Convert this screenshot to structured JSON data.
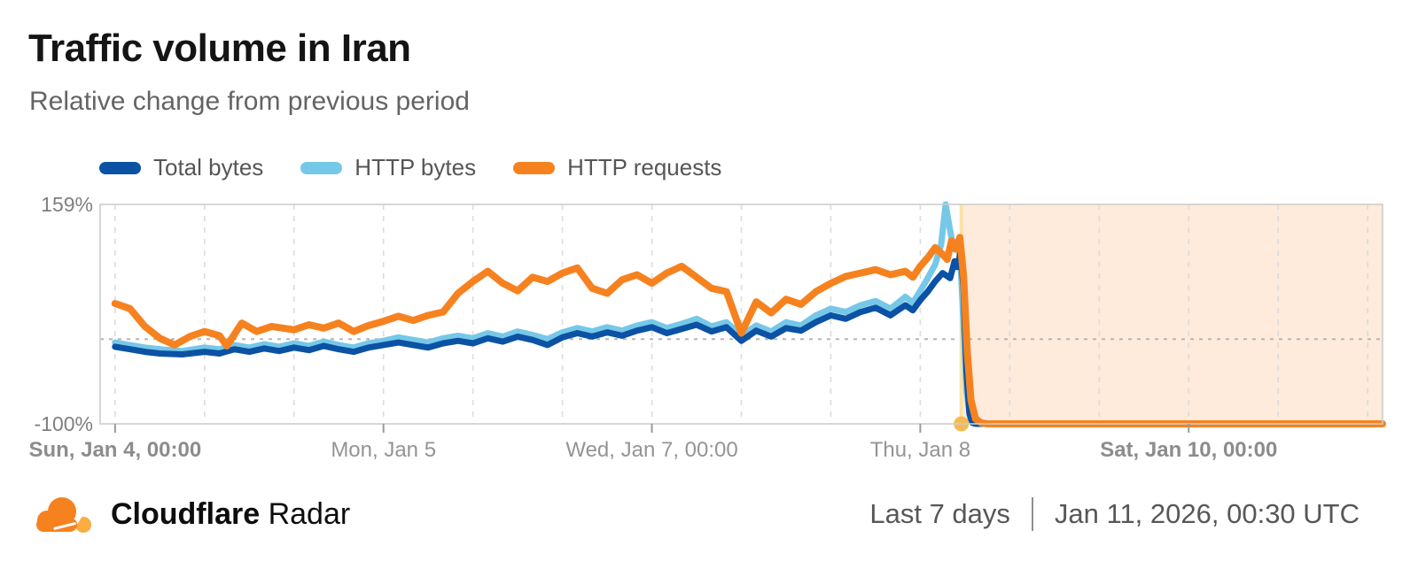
{
  "header": {
    "title": "Traffic volume in Iran",
    "subtitle": "Relative change from previous period"
  },
  "legend": {
    "items": [
      {
        "label": "Total bytes",
        "color": "#0b52a5"
      },
      {
        "label": "HTTP bytes",
        "color": "#76c8e8"
      },
      {
        "label": "HTTP requests",
        "color": "#f6821f"
      }
    ]
  },
  "chart_data": {
    "type": "line",
    "title": "Traffic volume in Iran",
    "subtitle": "Relative change from previous period",
    "unit": "percent relative change from previous period",
    "ylim": [
      -100,
      159
    ],
    "y_tick_labels": {
      "top": "159%",
      "bottom": "-100%"
    },
    "x_domain_hours": [
      -2,
      170
    ],
    "grid_interval_hours": 12,
    "zero_line": true,
    "legend_position": "top-left",
    "x_ticks": [
      {
        "hour": 0,
        "label": "Sun, Jan 4, 00:00",
        "bold": true
      },
      {
        "hour": 36,
        "label": "Mon, Jan 5",
        "bold": false
      },
      {
        "hour": 72,
        "label": "Wed, Jan 7, 00:00",
        "bold": false
      },
      {
        "hour": 108,
        "label": "Thu, Jan 8",
        "bold": false
      },
      {
        "hour": 144,
        "label": "Sat, Jan 10, 00:00",
        "bold": true
      }
    ],
    "annotations": {
      "shaded_region": {
        "start_hour": 113.5,
        "end_hour": 170,
        "fill": "rgba(246,130,31,0.16)"
      },
      "event_marker": {
        "hour": 113.5,
        "value": -100,
        "line_color": "#fbe2a4",
        "dot_color": "#f4bb52"
      }
    },
    "colors": {
      "plot_border": "#cdcdcd",
      "gridline": "#dcdcdc",
      "zero_line": "#b5b5b5",
      "tick": "#9a9a9a",
      "x_label": "#949494",
      "x_label_bold": "#8c8c8c",
      "y_label": "#7f7f7f"
    },
    "series": [
      {
        "name": "HTTP bytes",
        "color": "#76c8e8",
        "stroke_width": 7,
        "points": [
          [
            0,
            -4
          ],
          [
            2,
            -7
          ],
          [
            4,
            -10
          ],
          [
            6,
            -12
          ],
          [
            9,
            -14
          ],
          [
            12,
            -10
          ],
          [
            14,
            -12
          ],
          [
            16,
            -7
          ],
          [
            18,
            -10
          ],
          [
            20,
            -6
          ],
          [
            22,
            -9
          ],
          [
            24,
            -5
          ],
          [
            26,
            -8
          ],
          [
            28,
            -3
          ],
          [
            30,
            -7
          ],
          [
            32,
            -10
          ],
          [
            34,
            -5
          ],
          [
            36,
            -2
          ],
          [
            38,
            2
          ],
          [
            40,
            -1
          ],
          [
            42,
            -4
          ],
          [
            44,
            1
          ],
          [
            46,
            4
          ],
          [
            48,
            1
          ],
          [
            50,
            7
          ],
          [
            52,
            3
          ],
          [
            54,
            9
          ],
          [
            56,
            5
          ],
          [
            58,
            0
          ],
          [
            60,
            8
          ],
          [
            62,
            13
          ],
          [
            64,
            9
          ],
          [
            66,
            14
          ],
          [
            68,
            10
          ],
          [
            70,
            16
          ],
          [
            72,
            20
          ],
          [
            74,
            13
          ],
          [
            76,
            18
          ],
          [
            78,
            24
          ],
          [
            80,
            15
          ],
          [
            82,
            20
          ],
          [
            84,
            4
          ],
          [
            86,
            16
          ],
          [
            88,
            9
          ],
          [
            90,
            20
          ],
          [
            92,
            16
          ],
          [
            94,
            28
          ],
          [
            96,
            36
          ],
          [
            98,
            32
          ],
          [
            100,
            40
          ],
          [
            102,
            45
          ],
          [
            104,
            36
          ],
          [
            106,
            50
          ],
          [
            107,
            43
          ],
          [
            108,
            57
          ],
          [
            109,
            72
          ],
          [
            110,
            88
          ],
          [
            110.8,
            112
          ],
          [
            111.4,
            159
          ],
          [
            112,
            128
          ],
          [
            112.5,
            106
          ],
          [
            113,
            116
          ],
          [
            113.4,
            92
          ],
          [
            113.8,
            15
          ],
          [
            114.2,
            -62
          ],
          [
            114.7,
            -94
          ],
          [
            115.3,
            -100
          ],
          [
            120,
            -100
          ],
          [
            130,
            -100
          ],
          [
            144,
            -100
          ],
          [
            158,
            -100
          ],
          [
            170,
            -100
          ]
        ]
      },
      {
        "name": "Total bytes",
        "color": "#0b52a5",
        "stroke_width": 7,
        "points": [
          [
            0,
            -9
          ],
          [
            2,
            -12
          ],
          [
            4,
            -15
          ],
          [
            6,
            -17
          ],
          [
            9,
            -18
          ],
          [
            12,
            -15
          ],
          [
            14,
            -17
          ],
          [
            16,
            -12
          ],
          [
            18,
            -15
          ],
          [
            20,
            -11
          ],
          [
            22,
            -14
          ],
          [
            24,
            -10
          ],
          [
            26,
            -13
          ],
          [
            28,
            -8
          ],
          [
            30,
            -12
          ],
          [
            32,
            -15
          ],
          [
            34,
            -10
          ],
          [
            36,
            -7
          ],
          [
            38,
            -4
          ],
          [
            40,
            -7
          ],
          [
            42,
            -10
          ],
          [
            44,
            -5
          ],
          [
            46,
            -2
          ],
          [
            48,
            -5
          ],
          [
            50,
            1
          ],
          [
            52,
            -3
          ],
          [
            54,
            3
          ],
          [
            56,
            -1
          ],
          [
            58,
            -7
          ],
          [
            60,
            2
          ],
          [
            62,
            7
          ],
          [
            64,
            3
          ],
          [
            66,
            8
          ],
          [
            68,
            4
          ],
          [
            70,
            10
          ],
          [
            72,
            14
          ],
          [
            74,
            7
          ],
          [
            76,
            12
          ],
          [
            78,
            17
          ],
          [
            80,
            9
          ],
          [
            82,
            14
          ],
          [
            84,
            -2
          ],
          [
            86,
            10
          ],
          [
            88,
            3
          ],
          [
            90,
            13
          ],
          [
            92,
            10
          ],
          [
            94,
            20
          ],
          [
            96,
            28
          ],
          [
            98,
            24
          ],
          [
            100,
            32
          ],
          [
            102,
            37
          ],
          [
            104,
            28
          ],
          [
            106,
            40
          ],
          [
            107,
            34
          ],
          [
            108,
            46
          ],
          [
            109,
            56
          ],
          [
            110,
            68
          ],
          [
            111,
            78
          ],
          [
            112,
            72
          ],
          [
            112.6,
            92
          ],
          [
            113,
            85
          ],
          [
            113.4,
            103
          ],
          [
            113.8,
            60
          ],
          [
            114.2,
            -40
          ],
          [
            114.6,
            -88
          ],
          [
            115,
            -99
          ],
          [
            115.5,
            -100
          ],
          [
            120,
            -100
          ],
          [
            130,
            -100
          ],
          [
            144,
            -100
          ],
          [
            158,
            -100
          ],
          [
            170,
            -100
          ]
        ]
      },
      {
        "name": "HTTP requests",
        "color": "#f6821f",
        "stroke_width": 8,
        "points": [
          [
            0,
            42
          ],
          [
            2,
            36
          ],
          [
            4,
            15
          ],
          [
            6,
            1
          ],
          [
            8,
            -7
          ],
          [
            10,
            3
          ],
          [
            12,
            9
          ],
          [
            14,
            4
          ],
          [
            15,
            -8
          ],
          [
            17,
            19
          ],
          [
            19,
            9
          ],
          [
            21,
            15
          ],
          [
            24,
            11
          ],
          [
            26,
            17
          ],
          [
            28,
            13
          ],
          [
            30,
            19
          ],
          [
            32,
            9
          ],
          [
            34,
            16
          ],
          [
            36,
            21
          ],
          [
            38,
            27
          ],
          [
            40,
            22
          ],
          [
            42,
            28
          ],
          [
            44,
            32
          ],
          [
            46,
            54
          ],
          [
            48,
            68
          ],
          [
            50,
            80
          ],
          [
            52,
            66
          ],
          [
            54,
            57
          ],
          [
            56,
            73
          ],
          [
            58,
            68
          ],
          [
            60,
            78
          ],
          [
            62,
            84
          ],
          [
            64,
            60
          ],
          [
            66,
            54
          ],
          [
            68,
            70
          ],
          [
            70,
            76
          ],
          [
            72,
            66
          ],
          [
            74,
            78
          ],
          [
            76,
            86
          ],
          [
            78,
            73
          ],
          [
            80,
            60
          ],
          [
            82,
            56
          ],
          [
            84,
            7
          ],
          [
            86,
            44
          ],
          [
            88,
            31
          ],
          [
            90,
            47
          ],
          [
            92,
            41
          ],
          [
            94,
            56
          ],
          [
            96,
            66
          ],
          [
            98,
            74
          ],
          [
            100,
            78
          ],
          [
            102,
            82
          ],
          [
            104,
            76
          ],
          [
            106,
            80
          ],
          [
            107,
            73
          ],
          [
            108,
            86
          ],
          [
            109,
            96
          ],
          [
            110,
            108
          ],
          [
            111,
            100
          ],
          [
            111.6,
            94
          ],
          [
            112.2,
            116
          ],
          [
            112.8,
            106
          ],
          [
            113.3,
            120
          ],
          [
            113.8,
            75
          ],
          [
            114.3,
            -15
          ],
          [
            114.8,
            -72
          ],
          [
            115.4,
            -94
          ],
          [
            116.2,
            -99
          ],
          [
            117,
            -100
          ],
          [
            120,
            -100
          ],
          [
            130,
            -100
          ],
          [
            144,
            -100
          ],
          [
            158,
            -100
          ],
          [
            170,
            -100
          ]
        ]
      }
    ]
  },
  "footer": {
    "brand_bold": "Cloudflare",
    "brand_regular": "Radar",
    "range_label": "Last 7 days",
    "timestamp": "Jan 11, 2026, 00:30 UTC"
  }
}
